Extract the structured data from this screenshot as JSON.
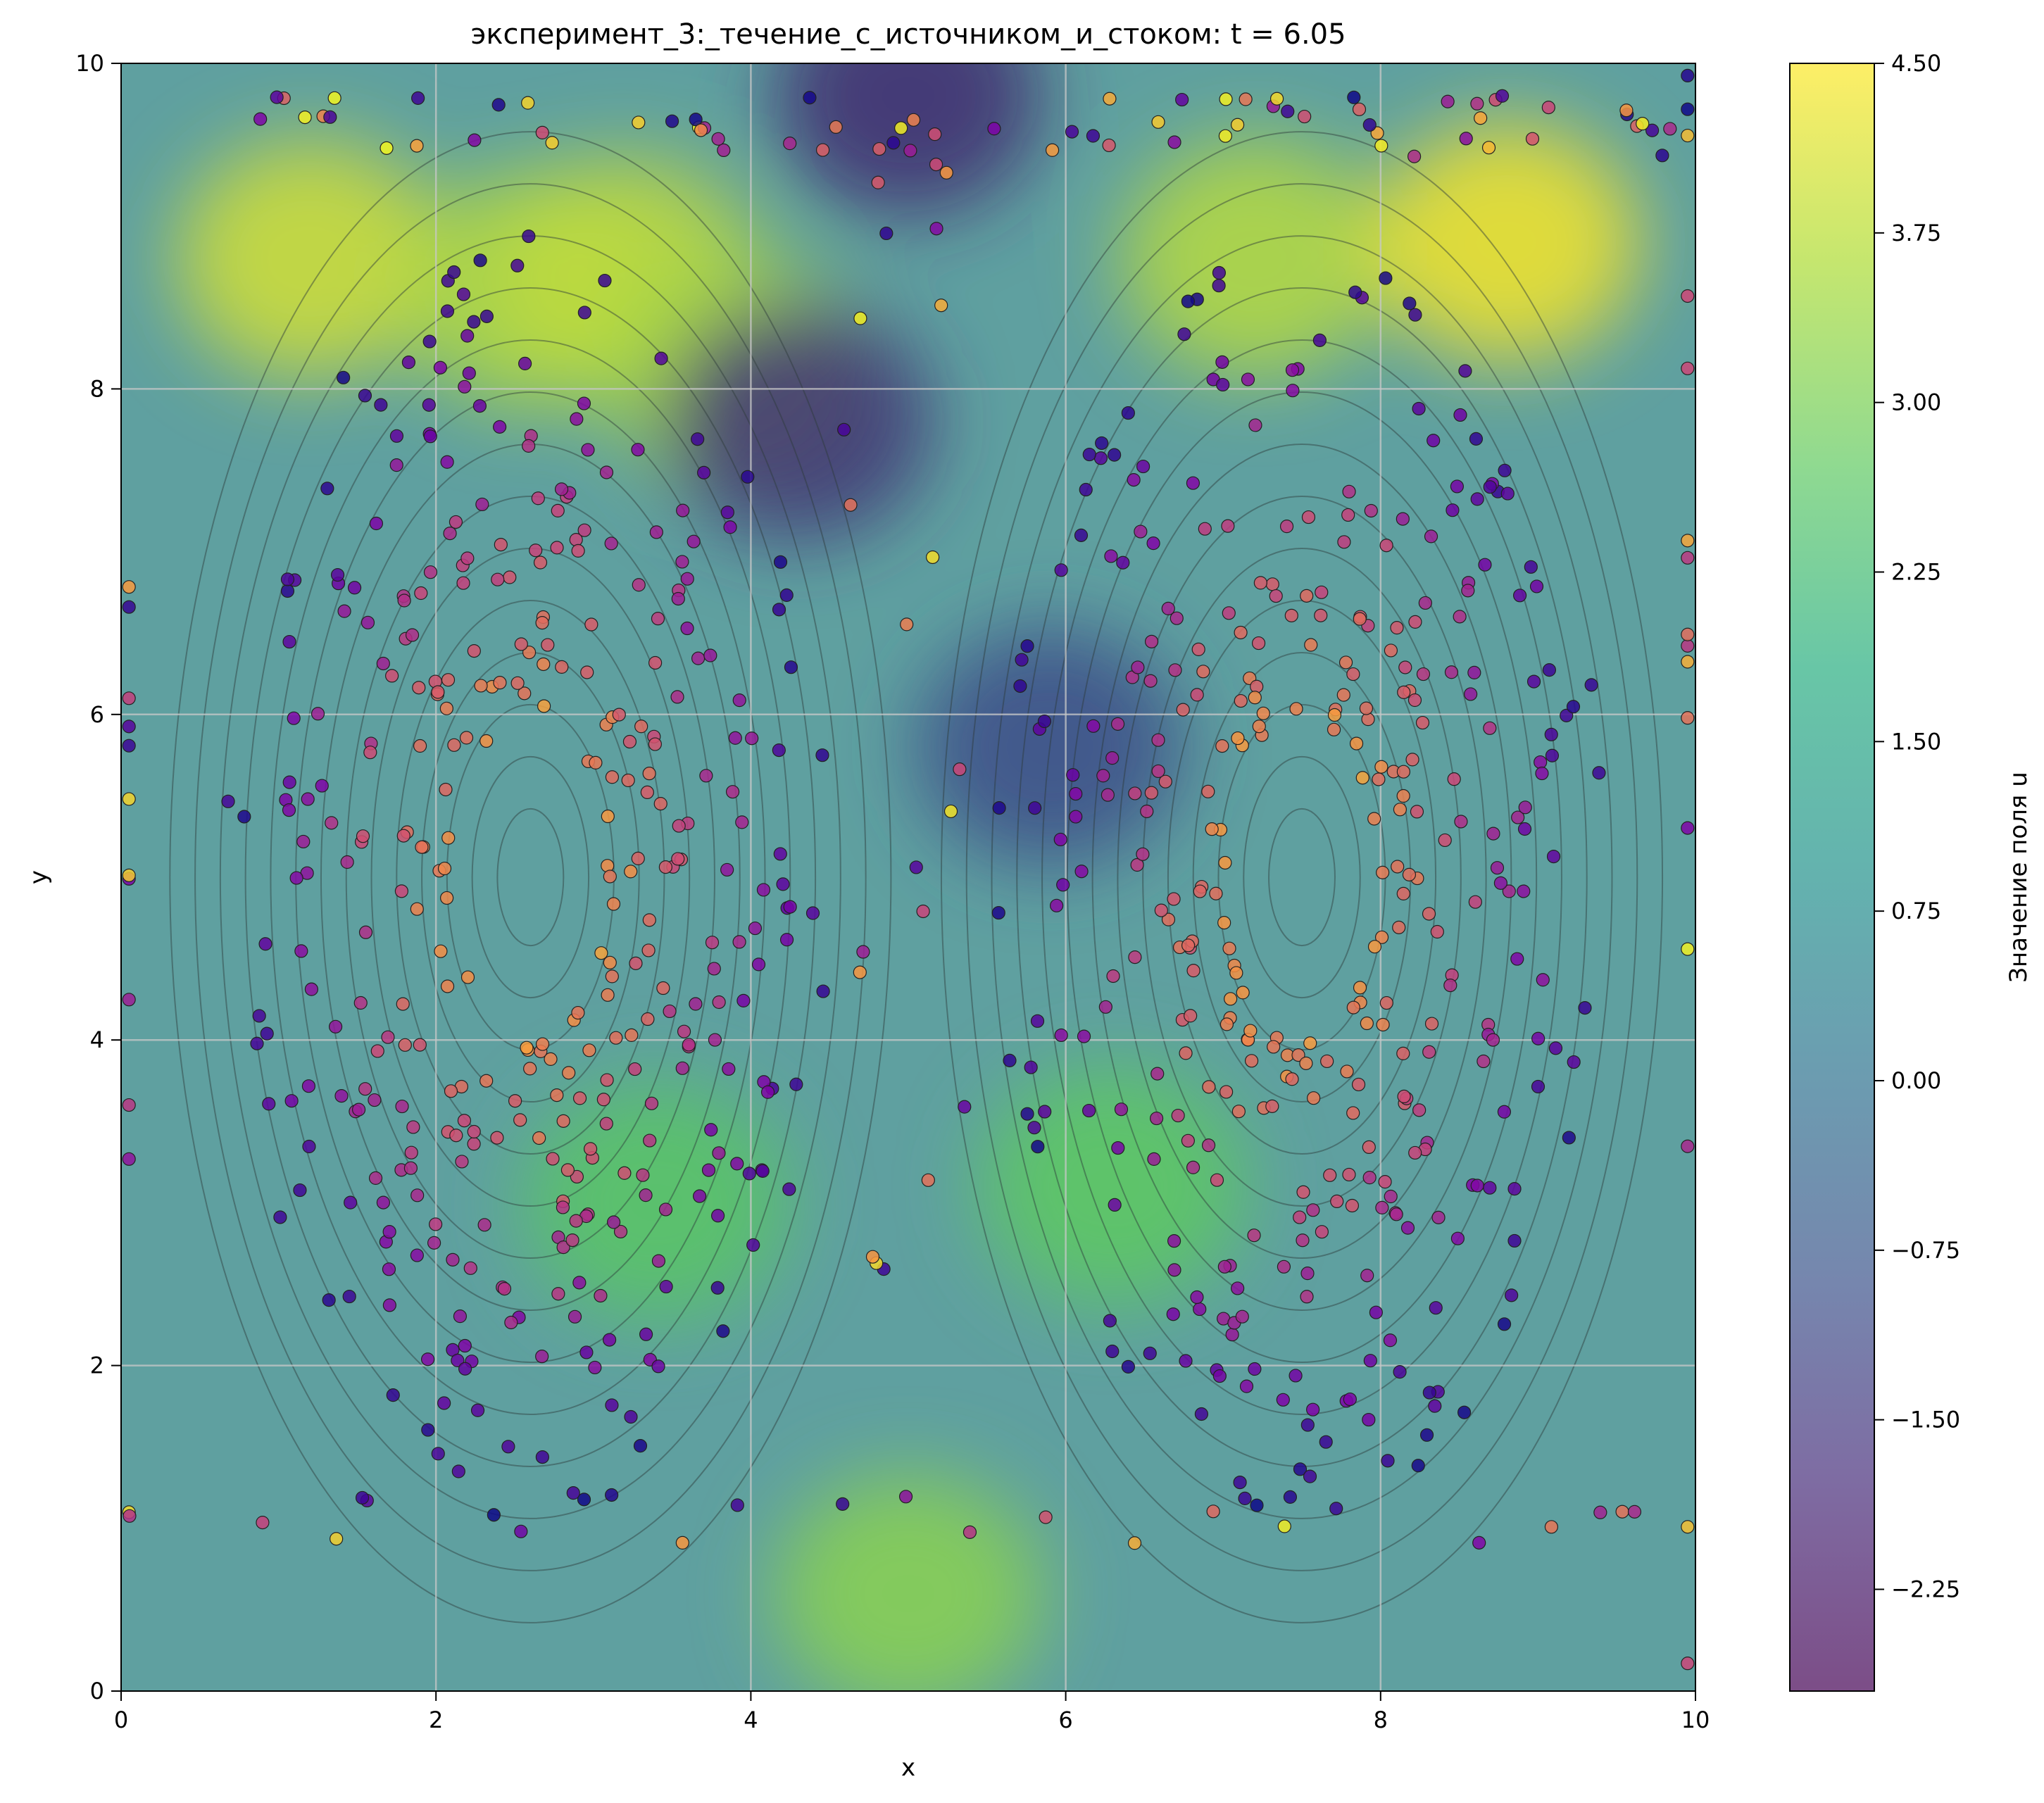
{
  "chart_data": {
    "type": "heatmap",
    "title": "эксперимент_3:_течение_с_источником_и_стоком: t = 6.05",
    "xlabel": "x",
    "ylabel": "y",
    "xlim": [
      0,
      10
    ],
    "ylim": [
      0,
      10
    ],
    "x_ticks": [
      "0",
      "2",
      "4",
      "6",
      "8",
      "10"
    ],
    "y_ticks": [
      "0",
      "2",
      "4",
      "6",
      "8",
      "10"
    ],
    "grid": true,
    "colormap": "viridis",
    "colorbar": {
      "label": "Значение поля u",
      "range": [
        -2.7,
        4.5
      ],
      "ticks": [
        "4.50",
        "3.75",
        "3.00",
        "2.25",
        "1.50",
        "0.75",
        "0.00",
        "−0.75",
        "−1.50",
        "−2.25"
      ]
    },
    "field_regions": [
      {
        "x": 1.2,
        "y": 8.8,
        "u": 4.0
      },
      {
        "x": 2.6,
        "y": 8.6,
        "u": 3.6
      },
      {
        "x": 3.2,
        "y": 8.7,
        "u": 3.8
      },
      {
        "x": 3.9,
        "y": 8.1,
        "u": 3.5
      },
      {
        "x": 4.3,
        "y": 7.8,
        "u": -1.6
      },
      {
        "x": 5.0,
        "y": 9.8,
        "u": -1.8
      },
      {
        "x": 7.2,
        "y": 8.8,
        "u": 3.7
      },
      {
        "x": 8.8,
        "y": 8.9,
        "u": 4.4
      },
      {
        "x": 5.9,
        "y": 5.8,
        "u": -1.0
      },
      {
        "x": 3.4,
        "y": 3.0,
        "u": 2.6
      },
      {
        "x": 6.3,
        "y": 3.1,
        "u": 2.7
      },
      {
        "x": 5.0,
        "y": 0.6,
        "u": 3.2
      }
    ],
    "streamlines": {
      "vortex_centers": [
        [
          2.6,
          5.0
        ],
        [
          7.5,
          5.0
        ]
      ]
    },
    "particles": {
      "count_approx": 900,
      "color_scale": "plasma",
      "description": "particles tracing two counter-rotating vortex rings around (2.6, 5) and (7.5, 5), plus particles along the domain boundary"
    }
  }
}
